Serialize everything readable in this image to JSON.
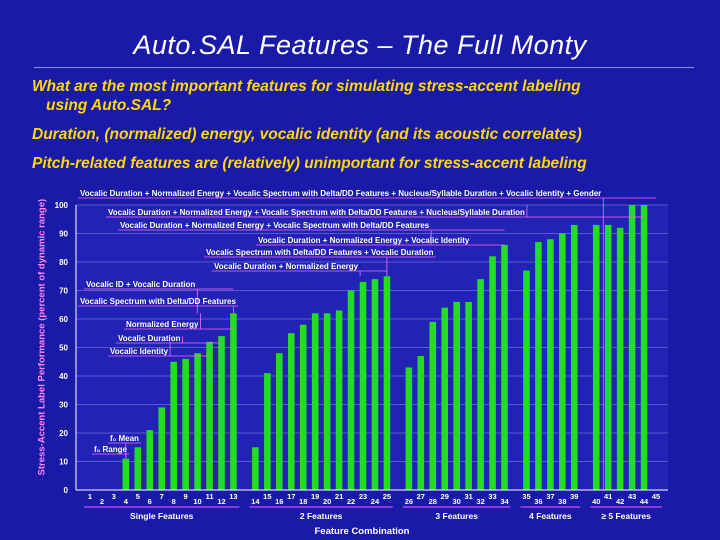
{
  "header": {
    "title": "Auto.SAL Features – The Full Monty",
    "question_line1": "What are the most  important features for simulating stress-accent labeling",
    "question_line2": "using Auto.SAL?",
    "answer": "Duration, (normalized) energy, vocalic identity (and its acoustic correlates)",
    "note": "Pitch-related features are (relatively) unimportant for stress-accent labeling"
  },
  "chart_data": {
    "type": "bar",
    "ylabel": "Stress-Accent Label Performance (percent of dynamic range)",
    "xlabel": "Feature Combination",
    "ylim": [
      0,
      100
    ],
    "yticks": [
      0,
      10,
      20,
      30,
      40,
      50,
      60,
      70,
      80,
      90,
      100
    ],
    "categories": [
      "1",
      "2",
      "3",
      "4",
      "5",
      "6",
      "7",
      "8",
      "9",
      "10",
      "11",
      "12",
      "13",
      "14",
      "15",
      "16",
      "17",
      "18",
      "19",
      "20",
      "21",
      "22",
      "23",
      "24",
      "25",
      "26",
      "27",
      "28",
      "29",
      "30",
      "31",
      "32",
      "33",
      "34",
      "35",
      "36",
      "37",
      "38",
      "39",
      "40",
      "41",
      "42",
      "43",
      "44",
      "45"
    ],
    "values": [
      0,
      0,
      0,
      11,
      15,
      21,
      29,
      45,
      46,
      48,
      52,
      54,
      62,
      15,
      41,
      48,
      55,
      58,
      62,
      62,
      63,
      70,
      73,
      74,
      75,
      43,
      47,
      59,
      64,
      66,
      66,
      74,
      82,
      86,
      77,
      87,
      88,
      90,
      93,
      93,
      93,
      92,
      100,
      100,
      0
    ],
    "groups": [
      {
        "label": "Single Features",
        "from": 1,
        "to": 13
      },
      {
        "label": "2 Features",
        "from": 14,
        "to": 25
      },
      {
        "label": "3 Features",
        "from": 26,
        "to": 34
      },
      {
        "label": "4 Features",
        "from": 35,
        "to": 39
      },
      {
        "label": "≥ 5 Features",
        "from": 40,
        "to": 45
      }
    ],
    "bar_color": "#22dd22",
    "grid": true
  },
  "annotations": {
    "a1": "Vocalic Duration + Normalized Energy + Vocalic Spectrum with Delta/DD Features + Nucleus/Syllable Duration + Vocalic Identity + Gender",
    "a2": "Vocalic Duration + Normalized Energy + Vocalic Spectrum with Delta/DD Features + Nucleus/Syllable Duration",
    "a3": "Vocalic Duration + Normalized Energy + Vocalic Spectrum with Delta/DD Features",
    "a4": "Vocalic Duration + Normalized Energy + Vocalic Identity",
    "a5": "Vocalic Spectrum with Delta/DD Features + Vocalic Duration",
    "a6": "Vocalic Duration + Normalized Energy",
    "a7": "Vocalic ID + Vocalic Duration",
    "a8": "Vocalic Spectrum with Delta/DD Features",
    "a9": "Normalized Energy",
    "a10": "Vocalic Duration",
    "a11": "Vocalic Identity",
    "a12": "f₀ Mean",
    "a13": "f₀ Range"
  }
}
